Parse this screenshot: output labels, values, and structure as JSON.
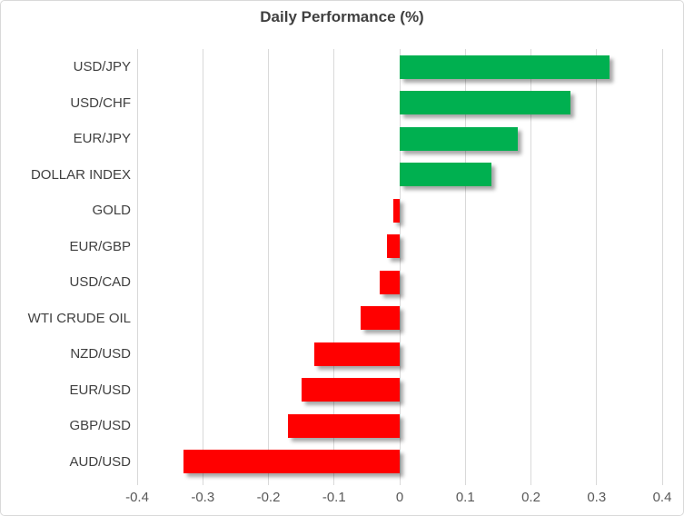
{
  "chart_data": {
    "type": "bar",
    "orientation": "horizontal",
    "title": "Daily Performance (%)",
    "categories": [
      "USD/JPY",
      "USD/CHF",
      "EUR/JPY",
      "DOLLAR INDEX",
      "GOLD",
      "EUR/GBP",
      "USD/CAD",
      "WTI CRUDE OIL",
      "NZD/USD",
      "EUR/USD",
      "GBP/USD",
      "AUD/USD"
    ],
    "values": [
      0.32,
      0.26,
      0.18,
      0.14,
      -0.01,
      -0.02,
      -0.03,
      -0.06,
      -0.13,
      -0.15,
      -0.17,
      -0.33
    ],
    "xlabel": "",
    "ylabel": "",
    "xlim": [
      -0.4,
      0.4
    ],
    "xticks": [
      -0.4,
      -0.3,
      -0.2,
      -0.1,
      0,
      0.1,
      0.2,
      0.3,
      0.4
    ],
    "xtick_labels": [
      "-0.4",
      "-0.3",
      "-0.2",
      "-0.1",
      "0",
      "0.1",
      "0.2",
      "0.3",
      "0.4"
    ],
    "grid": true,
    "legend": false,
    "colors": {
      "positive": "#00B050",
      "negative": "#FF0000",
      "gridline": "#D9D9D9",
      "border": "#D9D9D9",
      "title_text": "#404040",
      "category_text": "#404040",
      "tick_text": "#595959",
      "background": "#FFFFFF"
    }
  }
}
